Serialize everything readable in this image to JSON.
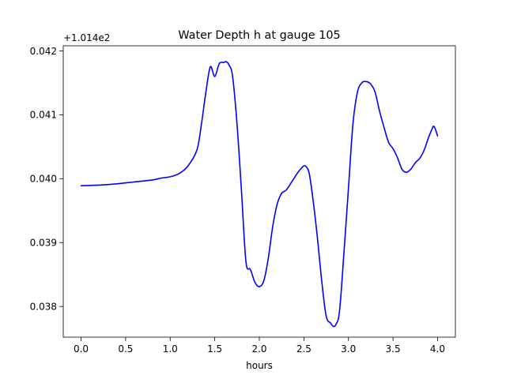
{
  "chart_data": {
    "type": "line",
    "title": "Water Depth h at gauge 105",
    "xlabel": "hours",
    "ylabel": "",
    "y_offset_label": "+1.014e2",
    "y_offset": 101.4,
    "xlim": [
      -0.2,
      4.2
    ],
    "ylim": [
      0.03752,
      0.04208
    ],
    "x_ticks": [
      {
        "value": 0.0,
        "label": "0.0"
      },
      {
        "value": 0.5,
        "label": "0.5"
      },
      {
        "value": 1.0,
        "label": "1.0"
      },
      {
        "value": 1.5,
        "label": "1.5"
      },
      {
        "value": 2.0,
        "label": "2.0"
      },
      {
        "value": 2.5,
        "label": "2.5"
      },
      {
        "value": 3.0,
        "label": "3.0"
      },
      {
        "value": 3.5,
        "label": "3.5"
      },
      {
        "value": 4.0,
        "label": "4.0"
      }
    ],
    "y_ticks": [
      {
        "value": 0.038,
        "label": "0.038"
      },
      {
        "value": 0.039,
        "label": "0.039"
      },
      {
        "value": 0.04,
        "label": "0.040"
      },
      {
        "value": 0.041,
        "label": "0.041"
      },
      {
        "value": 0.042,
        "label": "0.042"
      }
    ],
    "grid": false,
    "legend": "none",
    "series": [
      {
        "color": "#0000ff",
        "x": [
          0.0,
          0.2,
          0.4,
          0.6,
          0.8,
          0.9,
          1.0,
          1.1,
          1.2,
          1.3,
          1.35,
          1.4,
          1.45,
          1.5,
          1.55,
          1.6,
          1.63,
          1.66,
          1.7,
          1.75,
          1.8,
          1.85,
          1.9,
          1.95,
          2.0,
          2.05,
          2.1,
          2.15,
          2.2,
          2.25,
          2.3,
          2.35,
          2.4,
          2.45,
          2.5,
          2.53,
          2.56,
          2.6,
          2.65,
          2.7,
          2.75,
          2.8,
          2.83,
          2.86,
          2.9,
          2.95,
          3.0,
          3.05,
          3.1,
          3.15,
          3.2,
          3.25,
          3.3,
          3.35,
          3.4,
          3.45,
          3.5,
          3.55,
          3.6,
          3.65,
          3.7,
          3.75,
          3.8,
          3.85,
          3.9,
          3.93,
          3.96,
          4.0
        ],
        "y": [
          0.03989,
          0.0399,
          0.03992,
          0.03995,
          0.03998,
          0.04001,
          0.04003,
          0.04008,
          0.0402,
          0.04045,
          0.04085,
          0.04135,
          0.04175,
          0.0416,
          0.0418,
          0.04182,
          0.04183,
          0.04178,
          0.0416,
          0.04085,
          0.0398,
          0.0387,
          0.03858,
          0.03838,
          0.03831,
          0.0384,
          0.03875,
          0.03925,
          0.0396,
          0.03977,
          0.03982,
          0.03992,
          0.04003,
          0.04013,
          0.0402,
          0.04018,
          0.04008,
          0.0397,
          0.0391,
          0.0384,
          0.03785,
          0.03774,
          0.03769,
          0.03772,
          0.03793,
          0.03885,
          0.03985,
          0.04085,
          0.04135,
          0.0415,
          0.04152,
          0.04148,
          0.04135,
          0.04105,
          0.0408,
          0.04057,
          0.04047,
          0.04033,
          0.04015,
          0.0401,
          0.04015,
          0.04025,
          0.04032,
          0.04045,
          0.04065,
          0.04075,
          0.04082,
          0.04067
        ]
      }
    ]
  }
}
